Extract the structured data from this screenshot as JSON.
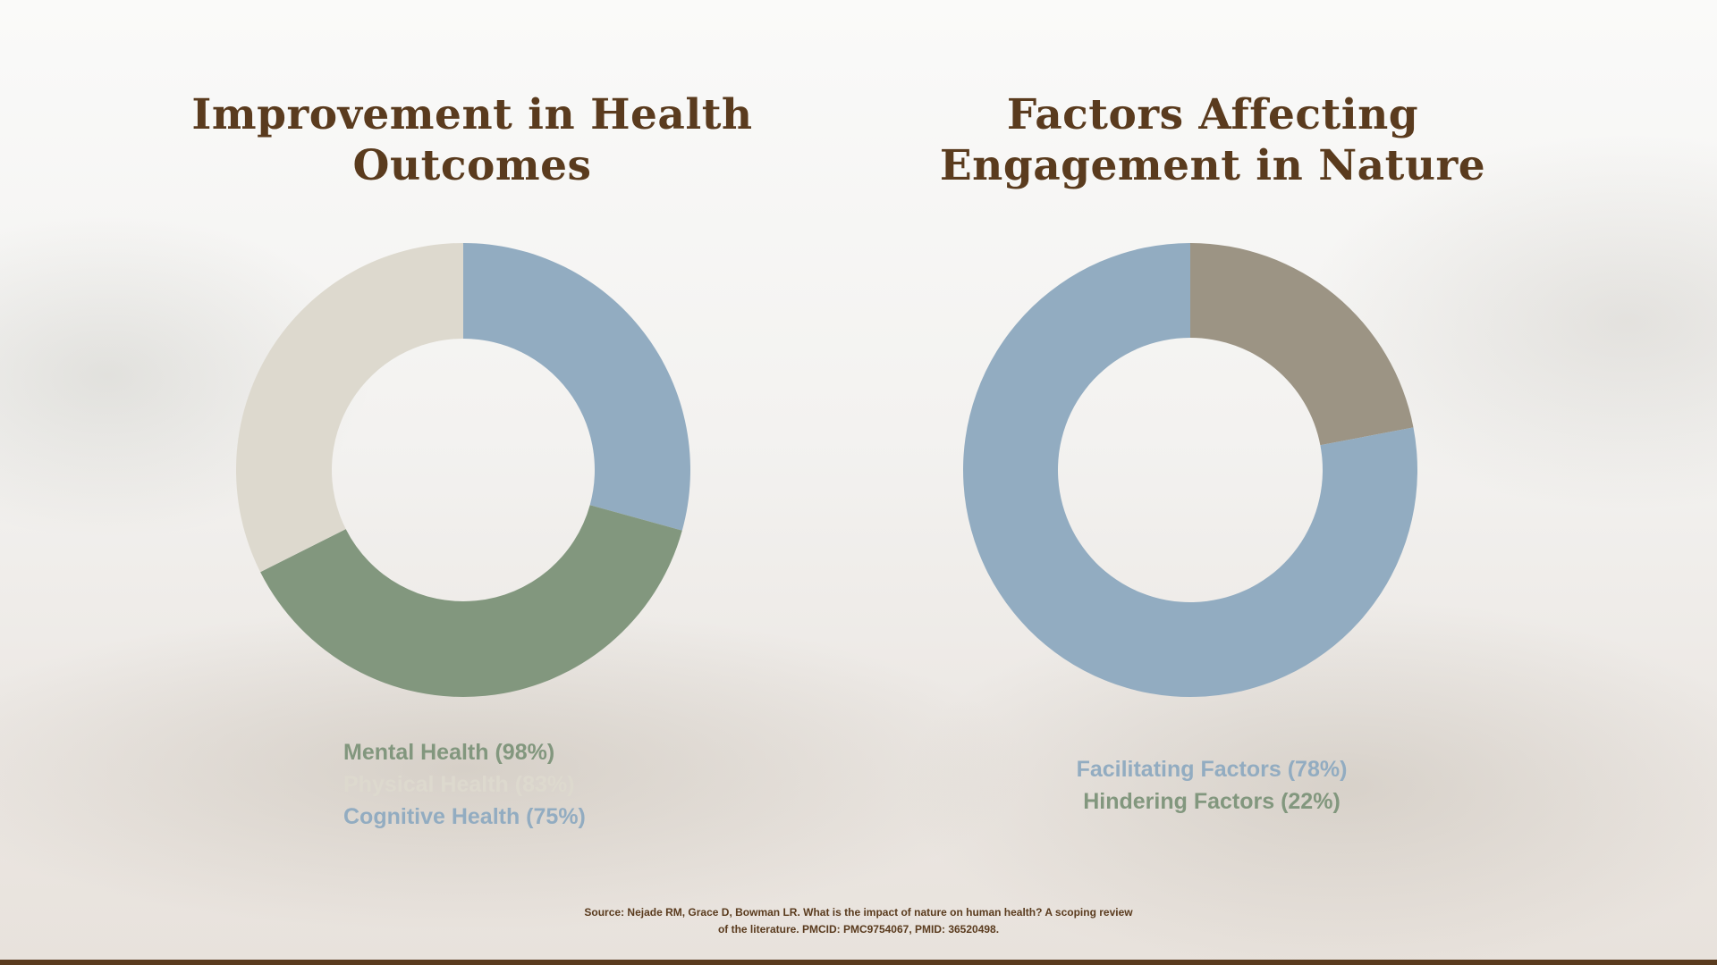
{
  "colors": {
    "title": "#5a3b1e",
    "source": "#5a3b1e",
    "bottom_bar": "#5a3b1e",
    "blue": "#92acc1",
    "green": "#82977e",
    "beige": "#ddd9ce",
    "taupe": "#9c9484"
  },
  "chart_data": [
    {
      "type": "pie",
      "style": "donut",
      "title": "Improvement in Health Outcomes",
      "slices": [
        {
          "label": "Cognitive Health (75%)",
          "value": 75,
          "color": "#92acc1"
        },
        {
          "label": "Mental Health (98%)",
          "value": 98,
          "color": "#82977e"
        },
        {
          "label": "Physical Health (83%)",
          "value": 83,
          "color": "#ddd9ce"
        }
      ],
      "legend": [
        {
          "label": "Mental Health (98%)",
          "color": "#82977e"
        },
        {
          "label": "Physical Health (83%)",
          "color": "#ddd9ce"
        },
        {
          "label": "Cognitive Health (75%)",
          "color": "#92acc1"
        }
      ],
      "legend_position": "bottom"
    },
    {
      "type": "pie",
      "style": "donut",
      "title": "Factors Affecting Engagement in Nature",
      "slices": [
        {
          "label": "Hindering Factors (22%)",
          "value": 22,
          "color": "#9c9484"
        },
        {
          "label": "Facilitating Factors (78%)",
          "value": 78,
          "color": "#92acc1"
        }
      ],
      "legend": [
        {
          "label": "Facilitating Factors (78%)",
          "color": "#92acc1"
        },
        {
          "label": "Hindering Factors (22%)",
          "color": "#82977e"
        }
      ],
      "legend_position": "bottom"
    }
  ],
  "source": {
    "line1": "Source: Nejade RM, Grace D, Bowman LR. What is the impact of nature on human health? A scoping review",
    "line2": "of the literature. PMCID: PMC9754067, PMID: 36520498."
  }
}
